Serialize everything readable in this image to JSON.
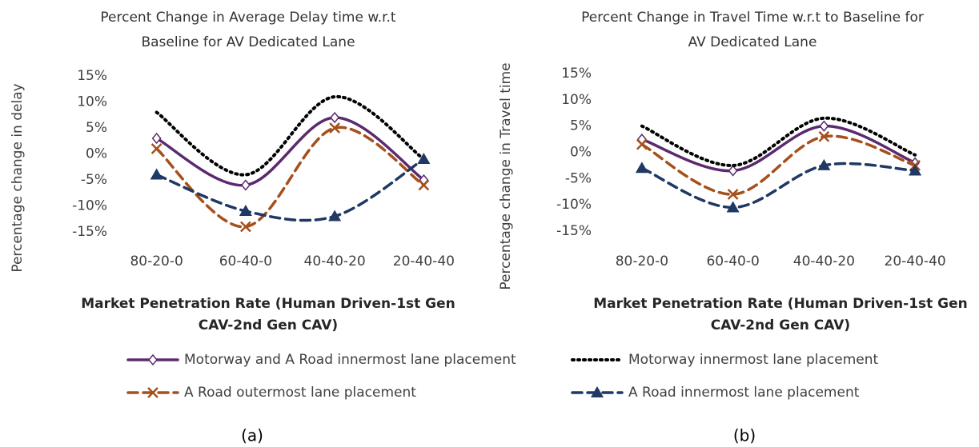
{
  "chart_data": [
    {
      "type": "line",
      "title": [
        "Percent Change in Average Delay time w.r.t",
        "Baseline for AV Dedicated Lane"
      ],
      "y_label": "Percentage change in delay",
      "x_label": [
        "Market Penetration Rate (Human Driven-1st Gen",
        "CAV-2nd Gen CAV)"
      ],
      "caption": "(a)",
      "categories": [
        "80-20-0",
        "60-40-0",
        "40-40-20",
        "20-40-40"
      ],
      "ylim": [
        -15,
        15
      ],
      "yticks": [
        {
          "value": 15,
          "label": "15%"
        },
        {
          "value": 10,
          "label": "10%"
        },
        {
          "value": 5,
          "label": "5%"
        },
        {
          "value": 0,
          "label": "0%"
        },
        {
          "value": -5,
          "label": "-5%"
        },
        {
          "value": -10,
          "label": "-10%"
        },
        {
          "value": -15,
          "label": "-15%"
        }
      ],
      "series": [
        {
          "name": "Motorway and A Road innermost lane placement",
          "color": "#5b2a6e",
          "line_style": "solid",
          "marker": "diamond",
          "values": [
            3,
            -6,
            7,
            -5
          ]
        },
        {
          "name": "Motorway innermost lane placement",
          "color": "#000000",
          "line_style": "dotted",
          "marker": "none",
          "values": [
            8,
            -4,
            11,
            -1
          ]
        },
        {
          "name": "A Road outermost lane placement",
          "color": "#a5501c",
          "line_style": "dashed",
          "marker": "x",
          "values": [
            1,
            -14,
            5,
            -6
          ]
        },
        {
          "name": "A Road innermost lane placement",
          "color": "#1f3864",
          "line_style": "dashed",
          "marker": "triangle",
          "values": [
            -4,
            -11,
            -12,
            -1
          ]
        }
      ]
    },
    {
      "type": "line",
      "title": [
        "Percent Change in Travel Time w.r.t to Baseline for",
        "AV Dedicated Lane"
      ],
      "y_label": "Percentage change in Travel time",
      "x_label": [
        "Market Penetration Rate (Human Driven-1st Gen",
        "CAV-2nd Gen CAV)"
      ],
      "caption": "(b)",
      "categories": [
        "80-20-0",
        "60-40-0",
        "40-40-20",
        "20-40-40"
      ],
      "ylim": [
        -15,
        15
      ],
      "yticks": [
        {
          "value": 15,
          "label": "15%"
        },
        {
          "value": 10,
          "label": "10%"
        },
        {
          "value": 5,
          "label": "5%"
        },
        {
          "value": 0,
          "label": "0%"
        },
        {
          "value": -5,
          "label": "-5%"
        },
        {
          "value": -10,
          "label": "-10%"
        },
        {
          "value": -15,
          "label": "-15%"
        }
      ],
      "series": [
        {
          "name": "Motorway and A Road innermost lane placement",
          "color": "#5b2a6e",
          "line_style": "solid",
          "marker": "diamond",
          "values": [
            2.5,
            -3.5,
            5,
            -2
          ]
        },
        {
          "name": "Motorway innermost lane placement",
          "color": "#000000",
          "line_style": "dotted",
          "marker": "none",
          "values": [
            5,
            -2.5,
            6.5,
            -0.5
          ]
        },
        {
          "name": "A Road outermost lane placement",
          "color": "#a5501c",
          "line_style": "dashed",
          "marker": "x",
          "values": [
            1.5,
            -8,
            3,
            -2.5
          ]
        },
        {
          "name": "A Road innermost lane placement",
          "color": "#1f3864",
          "line_style": "dashed",
          "marker": "triangle",
          "values": [
            -3,
            -10.5,
            -2.5,
            -3.5
          ]
        }
      ]
    }
  ]
}
